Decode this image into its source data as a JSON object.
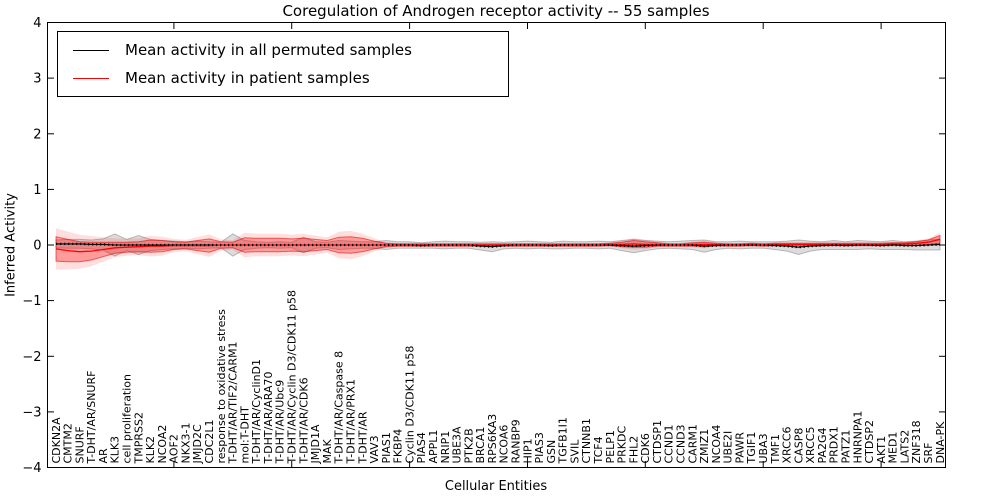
{
  "figure": {
    "title": "Coregulation of Androgen receptor activity -- 55 samples",
    "xlabel": "Cellular Entities",
    "ylabel": "Inferred Activity"
  },
  "legend": {
    "items": [
      {
        "label": "Mean activity in all permuted samples",
        "color": "#000000"
      },
      {
        "label": "Mean activity in patient samples",
        "color": "#ff0000"
      }
    ]
  },
  "chart_data": {
    "type": "line",
    "title": "Coregulation of Androgen receptor activity -- 55 samples",
    "xlabel": "Cellular Entities",
    "ylabel": "Inferred Activity",
    "ylim": [
      -4,
      4
    ],
    "yticks": [
      -4,
      -3,
      -2,
      -1,
      0,
      1,
      2,
      3,
      4
    ],
    "ytick_labels": [
      "−4",
      "−3",
      "−2",
      "−1",
      "0",
      "1",
      "2",
      "3",
      "4"
    ],
    "xtick_interval": 10,
    "grid": false,
    "legend_position": "upper left",
    "categories": [
      "CDKN2A",
      "CMTM2",
      "SNURF",
      "T-DHT/AR/SNURF",
      "AR",
      "KLK3",
      "cell proliferation",
      "TMPRSS2",
      "KLK2",
      "NCOA2",
      "AOF2",
      "NKX3-1",
      "JMJD2C",
      "CDC2L1",
      "response to oxidative stress",
      "T-DHT/AR/TIF2/CARM1",
      "mol:T-DHT",
      "T-DHT/AR/CyclinD1",
      "T-DHT/AR/ARA70",
      "T-DHT/AR/Ubc9",
      "T-DHT/AR/Cyclin D3/CDK11 p58",
      "T-DHT/AR/CDK6",
      "JMJD1A",
      "MAK",
      "T-DHT/AR/Caspase 8",
      "T-DHT/AR/PRX1",
      "T-DHT/AR",
      "VAV3",
      "PIAS1",
      "FKBP4",
      "Cyclin D3/CDK11 p58",
      "PIAS4",
      "APPL1",
      "NRIP1",
      "UBE3A",
      "PTK2B",
      "BRCA1",
      "RPS6KA3",
      "NCOA6",
      "RANBP9",
      "HIP1",
      "PIAS3",
      "GSN",
      "TGFB1I1",
      "SVIL",
      "CTNNB1",
      "TCF4",
      "PELP1",
      "PRKDC",
      "FHL2",
      "CDK6",
      "CTDSP1",
      "CCND1",
      "CCND3",
      "CARM1",
      "ZMIZ1",
      "NCOA4",
      "UBE2I",
      "PAWR",
      "TGIF1",
      "UBA3",
      "TMF1",
      "XRCC6",
      "CASP8",
      "XRCC5",
      "PA2G4",
      "PRDX1",
      "PATZ1",
      "HNRNPA1",
      "CTDSP2",
      "AKT1",
      "MED1",
      "LATS2",
      "ZNF318",
      "SRF",
      "DNA-PK"
    ],
    "series": [
      {
        "name": "Mean activity in all permuted samples",
        "color": "#000000",
        "band_color": "#787878",
        "values": [
          0.02,
          0.02,
          0.02,
          0.01,
          0.01,
          0.0,
          0.0,
          0.0,
          0.0,
          0.0,
          0.0,
          0.0,
          0.0,
          0.0,
          0.0,
          0.0,
          0.0,
          0.0,
          0.0,
          0.0,
          0.0,
          0.0,
          0.0,
          0.0,
          0.0,
          0.0,
          0.0,
          0.0,
          0.0,
          0.0,
          0.0,
          -0.01,
          0.0,
          0.0,
          0.0,
          0.0,
          -0.02,
          -0.03,
          -0.01,
          0.0,
          0.0,
          0.0,
          -0.01,
          0.0,
          0.0,
          0.0,
          0.0,
          0.0,
          -0.01,
          -0.02,
          -0.01,
          0.0,
          0.0,
          0.0,
          0.0,
          -0.02,
          -0.01,
          0.0,
          0.0,
          0.0,
          0.0,
          -0.01,
          -0.02,
          -0.04,
          -0.02,
          -0.01,
          0.0,
          -0.01,
          0.0,
          0.0,
          -0.01,
          0.0,
          -0.01,
          -0.01,
          0.0,
          0.01
        ],
        "std": [
          0.07,
          0.08,
          0.08,
          0.08,
          0.1,
          0.2,
          0.1,
          0.17,
          0.1,
          0.08,
          0.07,
          0.06,
          0.07,
          0.06,
          0.05,
          0.2,
          0.08,
          0.06,
          0.05,
          0.06,
          0.05,
          0.14,
          0.06,
          0.05,
          0.08,
          0.07,
          0.06,
          0.06,
          0.08,
          0.06,
          0.06,
          0.05,
          0.06,
          0.07,
          0.06,
          0.06,
          0.07,
          0.09,
          0.06,
          0.06,
          0.07,
          0.06,
          0.06,
          0.07,
          0.06,
          0.06,
          0.07,
          0.06,
          0.09,
          0.12,
          0.09,
          0.07,
          0.06,
          0.07,
          0.08,
          0.11,
          0.07,
          0.06,
          0.07,
          0.06,
          0.06,
          0.07,
          0.09,
          0.13,
          0.09,
          0.07,
          0.08,
          0.07,
          0.08,
          0.07,
          0.07,
          0.08,
          0.07,
          0.08,
          0.09,
          0.1
        ]
      },
      {
        "name": "Mean activity in patient samples",
        "color": "#ff0000",
        "band_color": "#ff0000",
        "values": [
          -0.07,
          -0.1,
          -0.12,
          -0.11,
          -0.08,
          -0.05,
          -0.04,
          -0.03,
          -0.02,
          -0.02,
          -0.01,
          -0.01,
          -0.01,
          -0.01,
          0.0,
          0.0,
          0.0,
          0.0,
          0.0,
          0.0,
          0.0,
          0.0,
          0.0,
          0.0,
          0.0,
          0.0,
          0.0,
          0.0,
          0.0,
          0.0,
          0.0,
          0.0,
          0.0,
          0.0,
          0.0,
          0.0,
          0.0,
          0.0,
          0.0,
          0.0,
          0.0,
          0.0,
          0.0,
          0.0,
          0.0,
          0.0,
          0.0,
          0.01,
          0.01,
          0.02,
          0.01,
          0.01,
          0.0,
          0.0,
          0.01,
          0.01,
          0.01,
          0.0,
          0.0,
          0.01,
          0.0,
          0.01,
          0.01,
          0.01,
          0.01,
          0.01,
          0.01,
          0.01,
          0.01,
          0.01,
          0.01,
          0.02,
          0.02,
          0.03,
          0.05,
          0.1
        ],
        "std": [
          0.22,
          0.2,
          0.18,
          0.16,
          0.13,
          0.1,
          0.09,
          0.09,
          0.11,
          0.1,
          0.07,
          0.06,
          0.09,
          0.12,
          0.06,
          0.05,
          0.13,
          0.12,
          0.12,
          0.12,
          0.11,
          0.12,
          0.1,
          0.08,
          0.14,
          0.15,
          0.12,
          0.07,
          0.03,
          0.02,
          0.02,
          0.02,
          0.02,
          0.02,
          0.02,
          0.02,
          0.02,
          0.02,
          0.02,
          0.02,
          0.02,
          0.02,
          0.02,
          0.02,
          0.02,
          0.02,
          0.02,
          0.02,
          0.04,
          0.06,
          0.05,
          0.03,
          0.02,
          0.02,
          0.03,
          0.04,
          0.02,
          0.02,
          0.02,
          0.02,
          0.02,
          0.02,
          0.02,
          0.02,
          0.02,
          0.02,
          0.02,
          0.02,
          0.02,
          0.02,
          0.02,
          0.02,
          0.02,
          0.03,
          0.04,
          0.07
        ]
      }
    ]
  }
}
